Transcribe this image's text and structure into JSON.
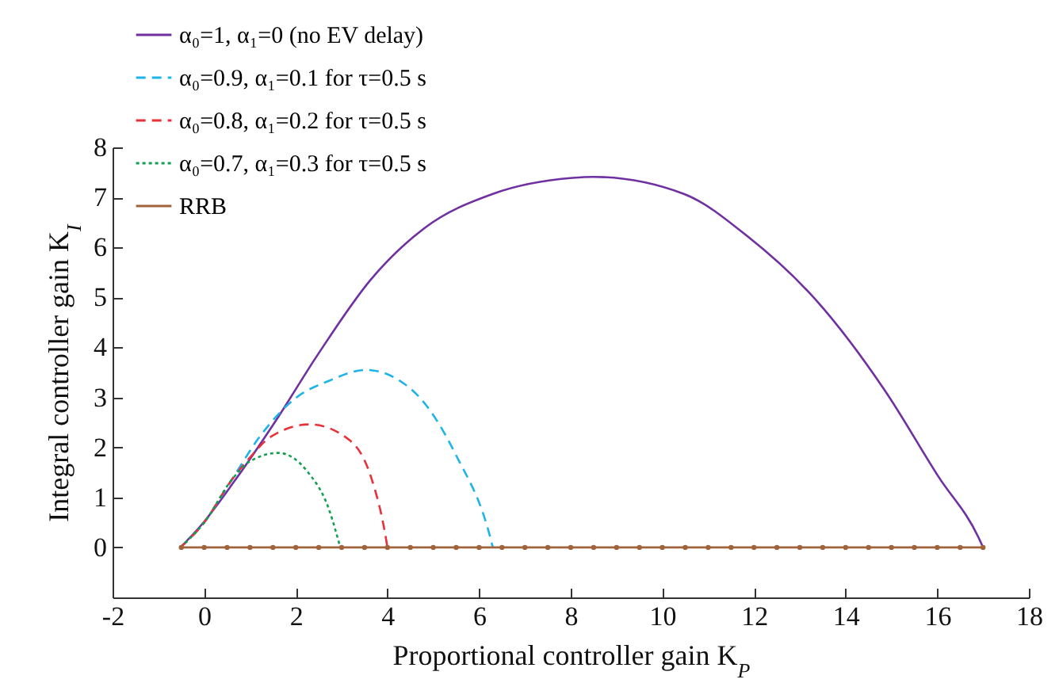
{
  "chart_data": {
    "type": "line",
    "xlabel": "Proportional controller gain K$_{P}$",
    "ylabel": "Integral controller gain K$_{I}$",
    "xlim": [
      -2,
      18
    ],
    "xticks": [
      -2,
      0,
      2,
      4,
      6,
      8,
      10,
      12,
      14,
      16,
      18
    ],
    "ylim": [
      -1,
      8
    ],
    "yticks": [
      {
        "value": -1,
        "label": null
      },
      0,
      1,
      2,
      3,
      4,
      5,
      6,
      7,
      8
    ],
    "grid": false,
    "legend": "top left",
    "series": [
      {
        "name": "α₀=1, α₁=0 (no EV delay)",
        "color": "#7030a0",
        "line_style": "solid",
        "x": [
          -0.52,
          -0.06,
          0.64,
          1.56,
          2.49,
          3.64,
          4.8,
          6.3,
          8.04,
          8.5,
          10.47,
          11.86,
          13.36,
          14.87,
          16.03,
          16.9,
          17.0
        ],
        "values": [
          0,
          0.45,
          1.3,
          2.53,
          3.87,
          5.36,
          6.38,
          7.07,
          7.39,
          7.41,
          7.07,
          6.22,
          4.94,
          3.12,
          1.41,
          0.2,
          0
        ]
      },
      {
        "name": "α₀=0.9, α₁=0.1 for τ=0.5 s",
        "color": "#1fb4e8",
        "line_style": "dashed",
        "x": [
          -0.52,
          0,
          0.6,
          1.2,
          2.03,
          2.72,
          3.53,
          4.57,
          5.5,
          6.25,
          6.3
        ],
        "values": [
          0,
          0.5,
          1.35,
          2.2,
          3.01,
          3.33,
          3.55,
          3.12,
          1.84,
          0.18,
          0
        ]
      },
      {
        "name": "α₀=0.8, α₁=0.2 for τ=0.5 s",
        "color": "#e8303a",
        "line_style": "dashed",
        "x": [
          -0.52,
          0,
          0.6,
          1.0,
          1.45,
          2.31,
          3.18,
          3.64,
          3.94,
          4.0
        ],
        "values": [
          0,
          0.5,
          1.35,
          1.8,
          2.21,
          2.46,
          2.14,
          1.41,
          0.32,
          0
        ]
      },
      {
        "name": "α₀=0.7, α₁=0.3 for τ=0.5 s",
        "color": "#10a050",
        "line_style": "dotted",
        "x": [
          -0.52,
          0,
          0.6,
          0.98,
          1.62,
          2.25,
          2.72,
          2.97
        ],
        "values": [
          0,
          0.5,
          1.35,
          1.71,
          1.89,
          1.52,
          0.77,
          0
        ]
      },
      {
        "name": "RRB",
        "color": "#a0643c",
        "line_style": "solid",
        "marker": "circle",
        "x": [
          -0.5,
          0,
          0.5,
          1,
          1.5,
          2,
          2.5,
          3,
          3.5,
          4,
          4.5,
          5,
          5.5,
          6,
          6.5,
          7,
          7.5,
          8,
          8.5,
          9,
          9.5,
          10,
          10.5,
          11,
          11.5,
          12,
          12.5,
          13,
          13.5,
          14,
          14.5,
          15,
          15.5,
          16,
          16.5,
          17
        ],
        "values": [
          0,
          0,
          0,
          0,
          0,
          0,
          0,
          0,
          0,
          0,
          0,
          0,
          0,
          0,
          0,
          0,
          0,
          0,
          0,
          0,
          0,
          0,
          0,
          0,
          0,
          0,
          0,
          0,
          0,
          0,
          0,
          0,
          0,
          0,
          0,
          0
        ]
      }
    ]
  }
}
